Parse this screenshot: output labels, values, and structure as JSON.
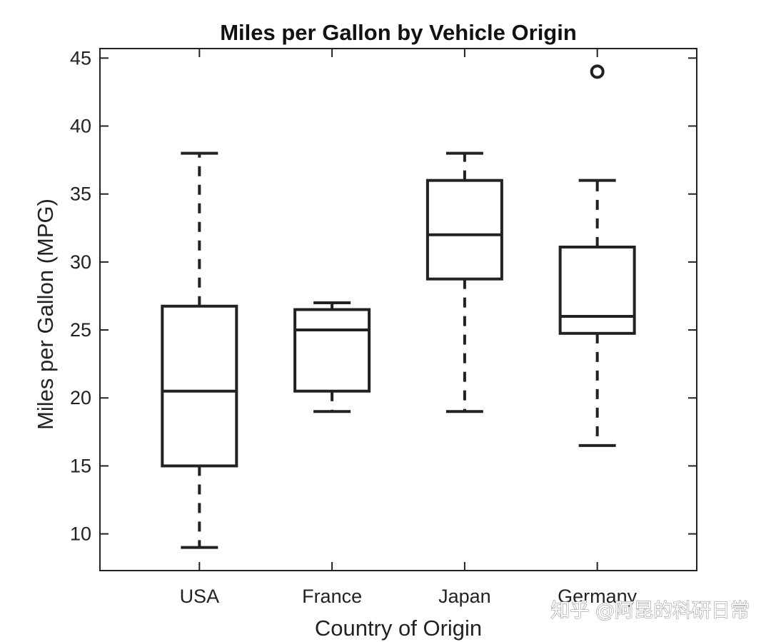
{
  "chart_data": {
    "type": "box",
    "title": "Miles per Gallon by Vehicle Origin",
    "xlabel": "Country of Origin",
    "ylabel": "Miles per Gallon (MPG)",
    "ylim": [
      7.3,
      45.7
    ],
    "yticks": [
      10,
      15,
      20,
      25,
      30,
      35,
      40,
      45
    ],
    "categories": [
      "USA",
      "France",
      "Japan",
      "Germany"
    ],
    "boxes": [
      {
        "name": "USA",
        "whisker_low": 9,
        "q1": 15,
        "median": 20.5,
        "q3": 26.75,
        "whisker_high": 38,
        "outliers": []
      },
      {
        "name": "France",
        "whisker_low": 19,
        "q1": 20.5,
        "median": 25,
        "q3": 26.5,
        "whisker_high": 27,
        "outliers": []
      },
      {
        "name": "Japan",
        "whisker_low": 19,
        "q1": 28.75,
        "median": 32,
        "q3": 36,
        "whisker_high": 38,
        "outliers": []
      },
      {
        "name": "Germany",
        "whisker_low": 16.5,
        "q1": 24.75,
        "median": 26,
        "q3": 31.1,
        "whisker_high": 36,
        "outliers": [
          44
        ]
      }
    ],
    "grid": false,
    "line_color": "#222222"
  },
  "watermark": "知乎 @阿昆的科研日常"
}
